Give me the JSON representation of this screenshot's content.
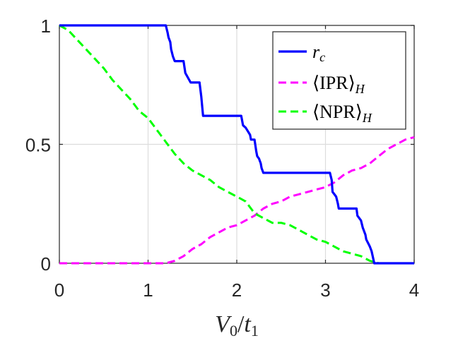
{
  "chart_data": {
    "type": "line",
    "xlabel": "V0/t1",
    "ylabel": "",
    "xlim": [
      0,
      4
    ],
    "ylim": [
      0,
      1
    ],
    "x_ticks": [
      "0",
      "1",
      "2",
      "3",
      "4"
    ],
    "y_ticks": [
      "0",
      "0.5",
      "1"
    ],
    "grid": true,
    "legend_position": "top-right",
    "series": [
      {
        "name": "r_c",
        "color": "#0000ff",
        "style": "solid",
        "x": [
          0,
          0.9,
          1.2,
          1.22,
          1.23,
          1.25,
          1.26,
          1.28,
          1.3,
          1.4,
          1.42,
          1.48,
          1.58,
          1.6,
          1.62,
          2.05,
          2.07,
          2.1,
          2.15,
          2.16,
          2.2,
          2.22,
          2.23,
          2.25,
          2.27,
          2.28,
          2.3,
          3.05,
          3.07,
          3.08,
          3.12,
          3.14,
          3.15,
          3.35,
          3.36,
          3.4,
          3.42,
          3.45,
          3.46,
          3.5,
          3.52,
          3.55,
          4.0
        ],
        "values": [
          1.0,
          1.0,
          1.0,
          0.97,
          0.95,
          0.93,
          0.9,
          0.87,
          0.85,
          0.85,
          0.8,
          0.76,
          0.76,
          0.7,
          0.62,
          0.62,
          0.58,
          0.57,
          0.54,
          0.52,
          0.52,
          0.47,
          0.45,
          0.44,
          0.42,
          0.4,
          0.38,
          0.38,
          0.35,
          0.3,
          0.28,
          0.25,
          0.23,
          0.23,
          0.2,
          0.18,
          0.15,
          0.12,
          0.1,
          0.07,
          0.05,
          0.0,
          0.0
        ]
      },
      {
        "name": "⟨IPR⟩_H",
        "color": "#ff00ff",
        "style": "dashed",
        "x": [
          0,
          1.2,
          1.3,
          1.4,
          1.5,
          1.6,
          1.7,
          1.8,
          1.9,
          2.0,
          2.1,
          2.2,
          2.3,
          2.4,
          2.5,
          2.6,
          2.7,
          2.8,
          2.9,
          3.0,
          3.1,
          3.2,
          3.3,
          3.4,
          3.5,
          3.6,
          3.7,
          3.8,
          3.9,
          4.0
        ],
        "values": [
          0.0,
          0.0,
          0.01,
          0.03,
          0.06,
          0.08,
          0.11,
          0.13,
          0.15,
          0.16,
          0.18,
          0.2,
          0.23,
          0.25,
          0.26,
          0.28,
          0.29,
          0.3,
          0.31,
          0.32,
          0.34,
          0.37,
          0.39,
          0.4,
          0.42,
          0.45,
          0.48,
          0.5,
          0.52,
          0.53
        ]
      },
      {
        "name": "⟨NPR⟩_H",
        "color": "#00ff00",
        "style": "dashed",
        "x": [
          0,
          0.1,
          0.2,
          0.3,
          0.4,
          0.5,
          0.6,
          0.7,
          0.8,
          0.9,
          1.0,
          1.1,
          1.2,
          1.3,
          1.4,
          1.5,
          1.6,
          1.7,
          1.8,
          1.9,
          2.0,
          2.1,
          2.2,
          2.3,
          2.4,
          2.5,
          2.6,
          2.7,
          2.8,
          2.9,
          3.0,
          3.1,
          3.2,
          3.3,
          3.4,
          3.5,
          3.6,
          3.7,
          3.8,
          3.9,
          4.0
        ],
        "values": [
          1.0,
          0.98,
          0.94,
          0.9,
          0.86,
          0.82,
          0.77,
          0.73,
          0.69,
          0.64,
          0.61,
          0.56,
          0.51,
          0.46,
          0.42,
          0.39,
          0.37,
          0.35,
          0.32,
          0.3,
          0.28,
          0.26,
          0.21,
          0.19,
          0.17,
          0.17,
          0.16,
          0.14,
          0.12,
          0.1,
          0.09,
          0.07,
          0.05,
          0.04,
          0.03,
          0.01,
          0.0,
          0.0,
          0.0,
          0.0,
          0.0
        ]
      }
    ],
    "legend": {
      "entries": [
        {
          "symbol": "r",
          "subscript": "c"
        },
        {
          "symbol": "⟨IPR⟩",
          "subscript": "H"
        },
        {
          "symbol": "⟨NPR⟩",
          "subscript": "H"
        }
      ]
    },
    "xlabel_parts": {
      "a": "V",
      "a_sub": "0",
      "slash": "/",
      "b": "t",
      "b_sub": "1"
    }
  }
}
